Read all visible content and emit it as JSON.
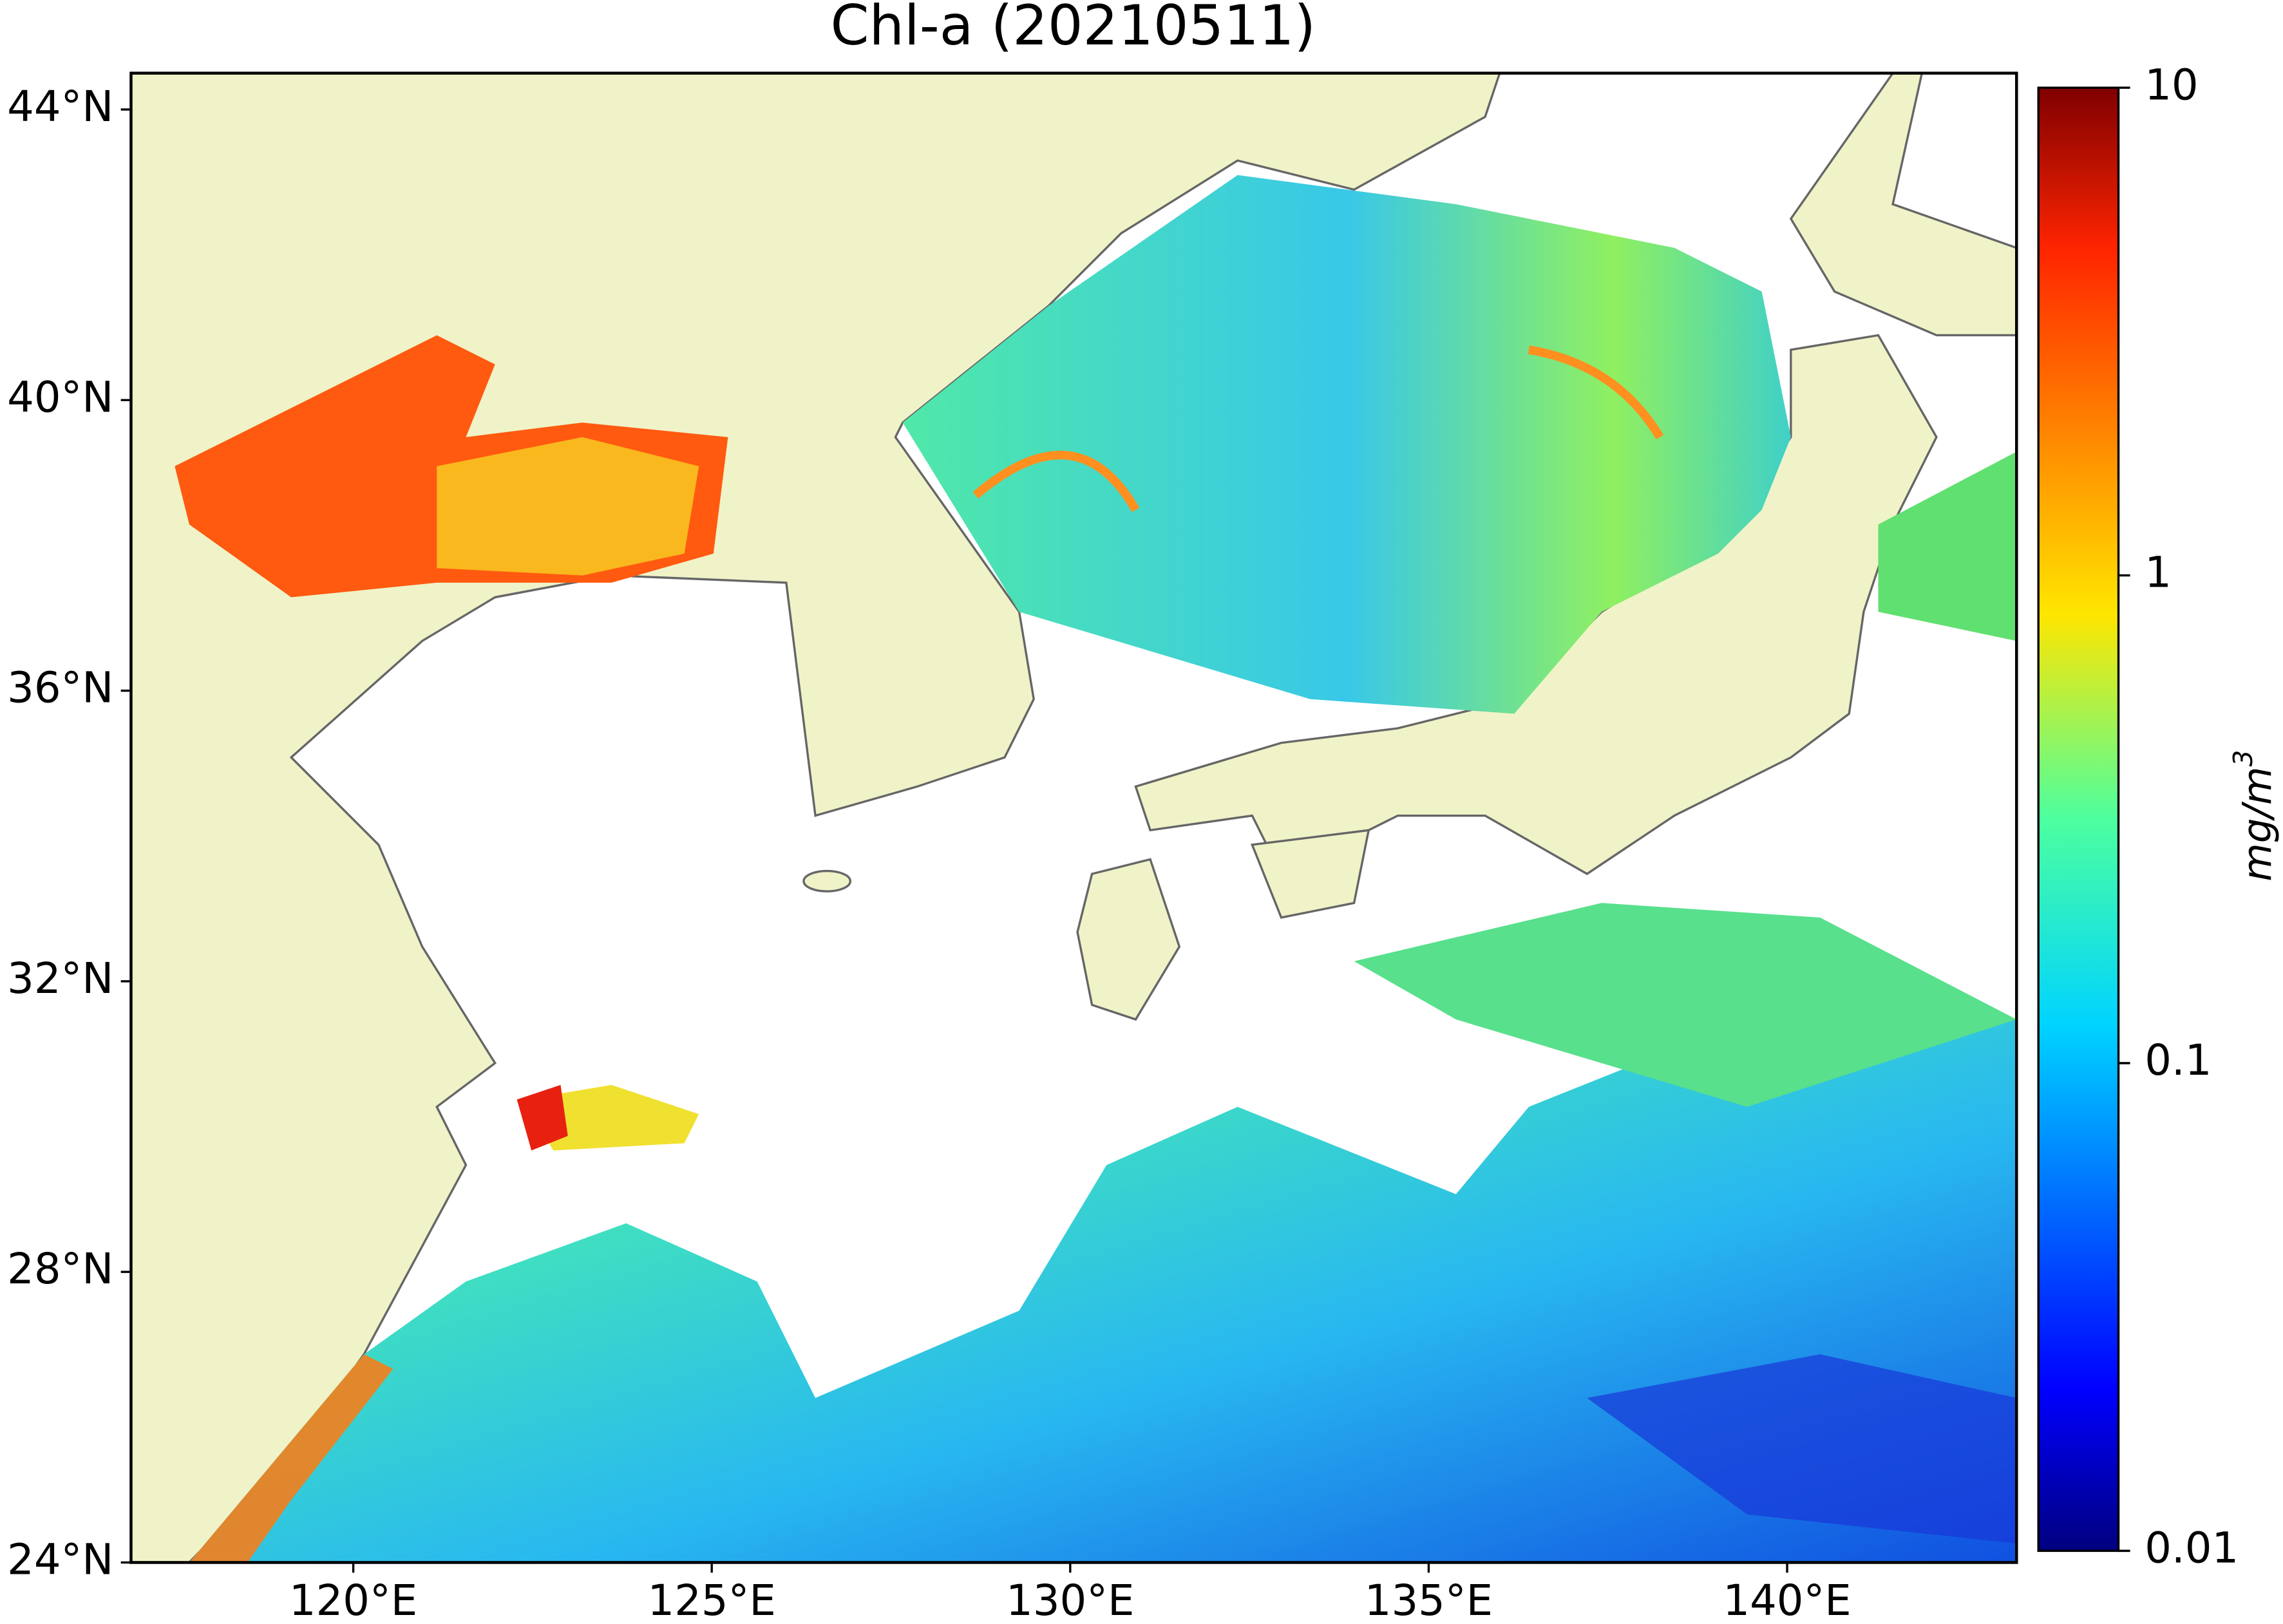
{
  "map": {
    "title": "Chl-a (20210511)",
    "xlim": [
      116.9,
      143.2
    ],
    "ylim": [
      24,
      44.5
    ],
    "xticks": [
      {
        "value": 120,
        "label": "120°E"
      },
      {
        "value": 125,
        "label": "125°E"
      },
      {
        "value": 130,
        "label": "130°E"
      },
      {
        "value": 135,
        "label": "135°E"
      },
      {
        "value": 140,
        "label": "140°E"
      }
    ],
    "yticks": [
      {
        "value": 24,
        "label": "24°N"
      },
      {
        "value": 28,
        "label": "28°N"
      },
      {
        "value": 32,
        "label": "32°N"
      },
      {
        "value": 36,
        "label": "36°N"
      },
      {
        "value": 40,
        "label": "40°N"
      },
      {
        "value": 44,
        "label": "44°N"
      }
    ],
    "colorbar": {
      "lim": [
        0.01,
        10
      ],
      "log": true,
      "ticks": [
        0.01,
        0.1,
        1,
        10
      ],
      "label": {
        "base": "mg/m",
        "exponent": "3"
      }
    }
  }
}
